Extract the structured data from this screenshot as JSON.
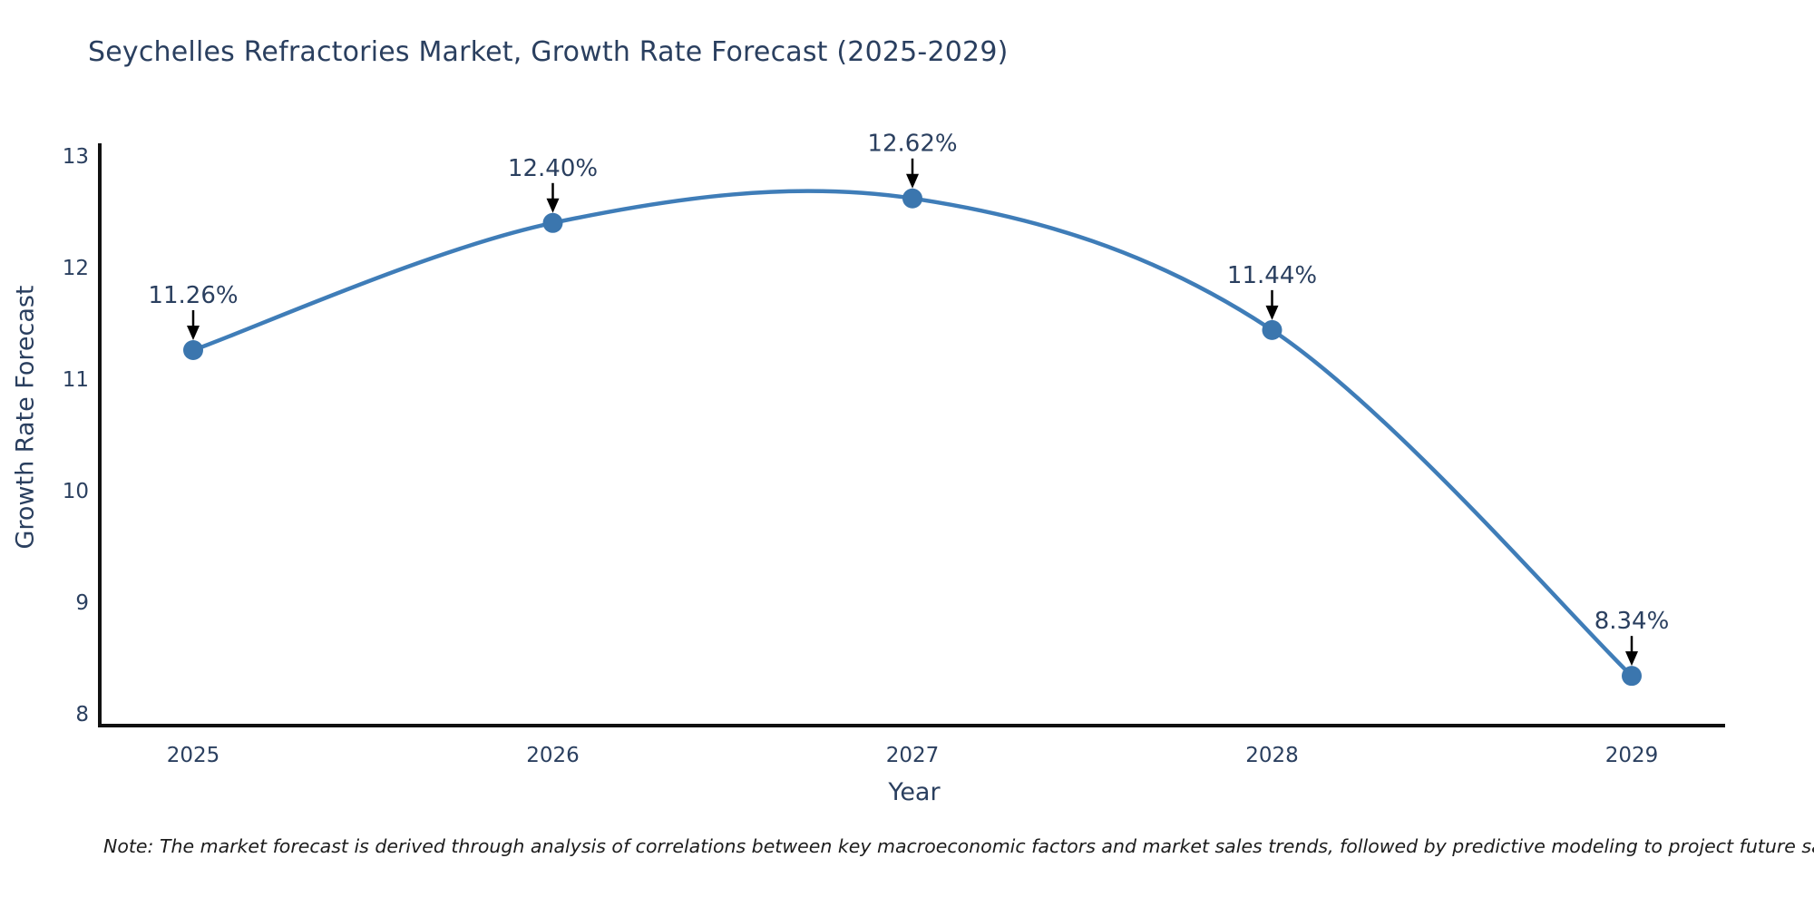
{
  "title": "Seychelles Refractories Market, Growth Rate Forecast (2025-2029)",
  "note": "Note: The market forecast is derived through analysis of correlations between key macroeconomic factors and market sales trends, followed by predictive modeling to project future sales",
  "chart_data": {
    "type": "line",
    "title": "Seychelles Refractories Market, Growth Rate Forecast (2025-2029)",
    "xlabel": "Year",
    "ylabel": "Growth Rate Forecast",
    "x": [
      2025,
      2026,
      2027,
      2028,
      2029
    ],
    "values": [
      11.26,
      12.4,
      12.62,
      11.44,
      8.34
    ],
    "point_labels": [
      "11.26%",
      "12.40%",
      "12.62%",
      "11.44%",
      "8.34%"
    ],
    "yticks": [
      13,
      12,
      11,
      10,
      9,
      8
    ],
    "ylim": [
      7.9,
      13.1
    ],
    "grid": false,
    "legend_position": "none",
    "line_shape": "spline",
    "colors": {
      "line": "#3f7db8",
      "marker": "#3b76ae",
      "arrow": "#000000",
      "text": "#2a3f5f",
      "axis": "#111111"
    }
  }
}
